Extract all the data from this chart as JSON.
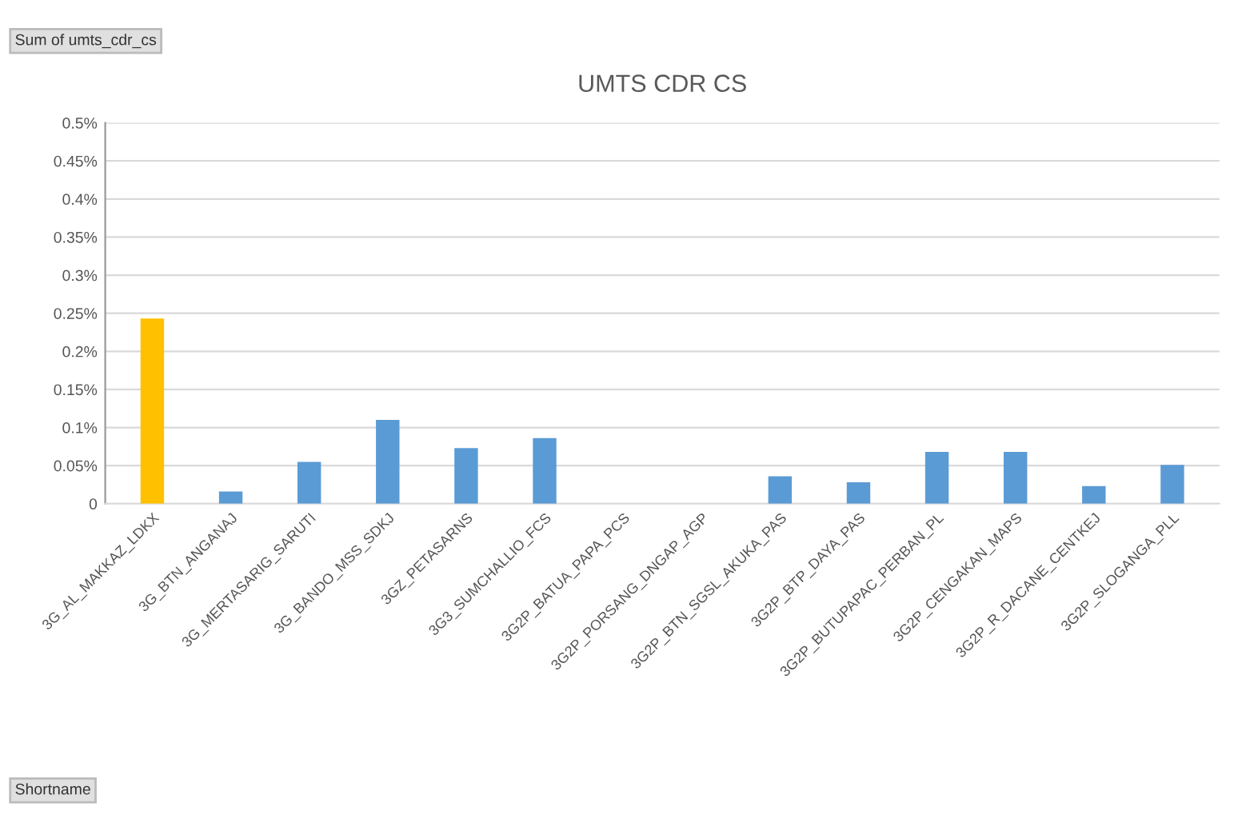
{
  "chart_data": {
    "type": "bar",
    "title": "UMTS CDR CS",
    "categories": [
      "3G_AL_MAKKAZ_LDKX",
      "3G_BTN_ANGANAJ",
      "3G_MERTASARIG_SARUTI",
      "3G_BANDO_MSS_SDKJ",
      "3GZ_PETASARNS",
      "3G3_SUMCHALLIO_FCS",
      "3G2P_BATUA_PAPA_PCS",
      "3G2P_PORSANG_DNGAP_AGP",
      "3G2P_BTN_SGSL_AKUKA_PAS",
      "3G2P_BTP_DAYA_PAS",
      "3G2P_BUTUPAPAC_PERBAN_PL",
      "3G2P_CENGAKAN_MAPS",
      "3G2P_R_DACANE_CENTKEJ",
      "3G2P_SLOGANGA_PLL"
    ],
    "values": [
      0.243,
      0.016,
      0.055,
      0.11,
      0.073,
      0.086,
      null,
      null,
      0.036,
      0.028,
      0.068,
      0.068,
      0.023,
      0.051
    ],
    "colors": [
      "#ffc000",
      "#5b9bd5",
      "#5b9bd5",
      "#5b9bd5",
      "#5b9bd5",
      "#5b9bd5",
      "#5b9bd5",
      "#5b9bd5",
      "#5b9bd5",
      "#5b9bd5",
      "#5b9bd5",
      "#5b9bd5",
      "#5b9bd5",
      "#5b9bd5"
    ],
    "ylim": [
      0,
      0.5
    ],
    "yticks": [
      0,
      {
        "value": 0.05,
        "label": "0.05%"
      },
      {
        "value": 0.1,
        "label": "0.1%"
      },
      {
        "value": 0.15,
        "label": "0.15%"
      },
      {
        "value": 0.2,
        "label": "0.2%"
      },
      {
        "value": 0.25,
        "label": "0.25%"
      },
      {
        "value": 0.3,
        "label": "0.3%"
      },
      {
        "value": 0.35,
        "label": "0.35%"
      },
      {
        "value": 0.4,
        "label": "0.4%"
      },
      {
        "value": 0.45,
        "label": "0.45%"
      },
      {
        "value": 0.5,
        "label": "0.5%"
      }
    ],
    "grid": "y",
    "annotations": [
      "Sum of umts_cdr_cs",
      "Shortname"
    ]
  }
}
